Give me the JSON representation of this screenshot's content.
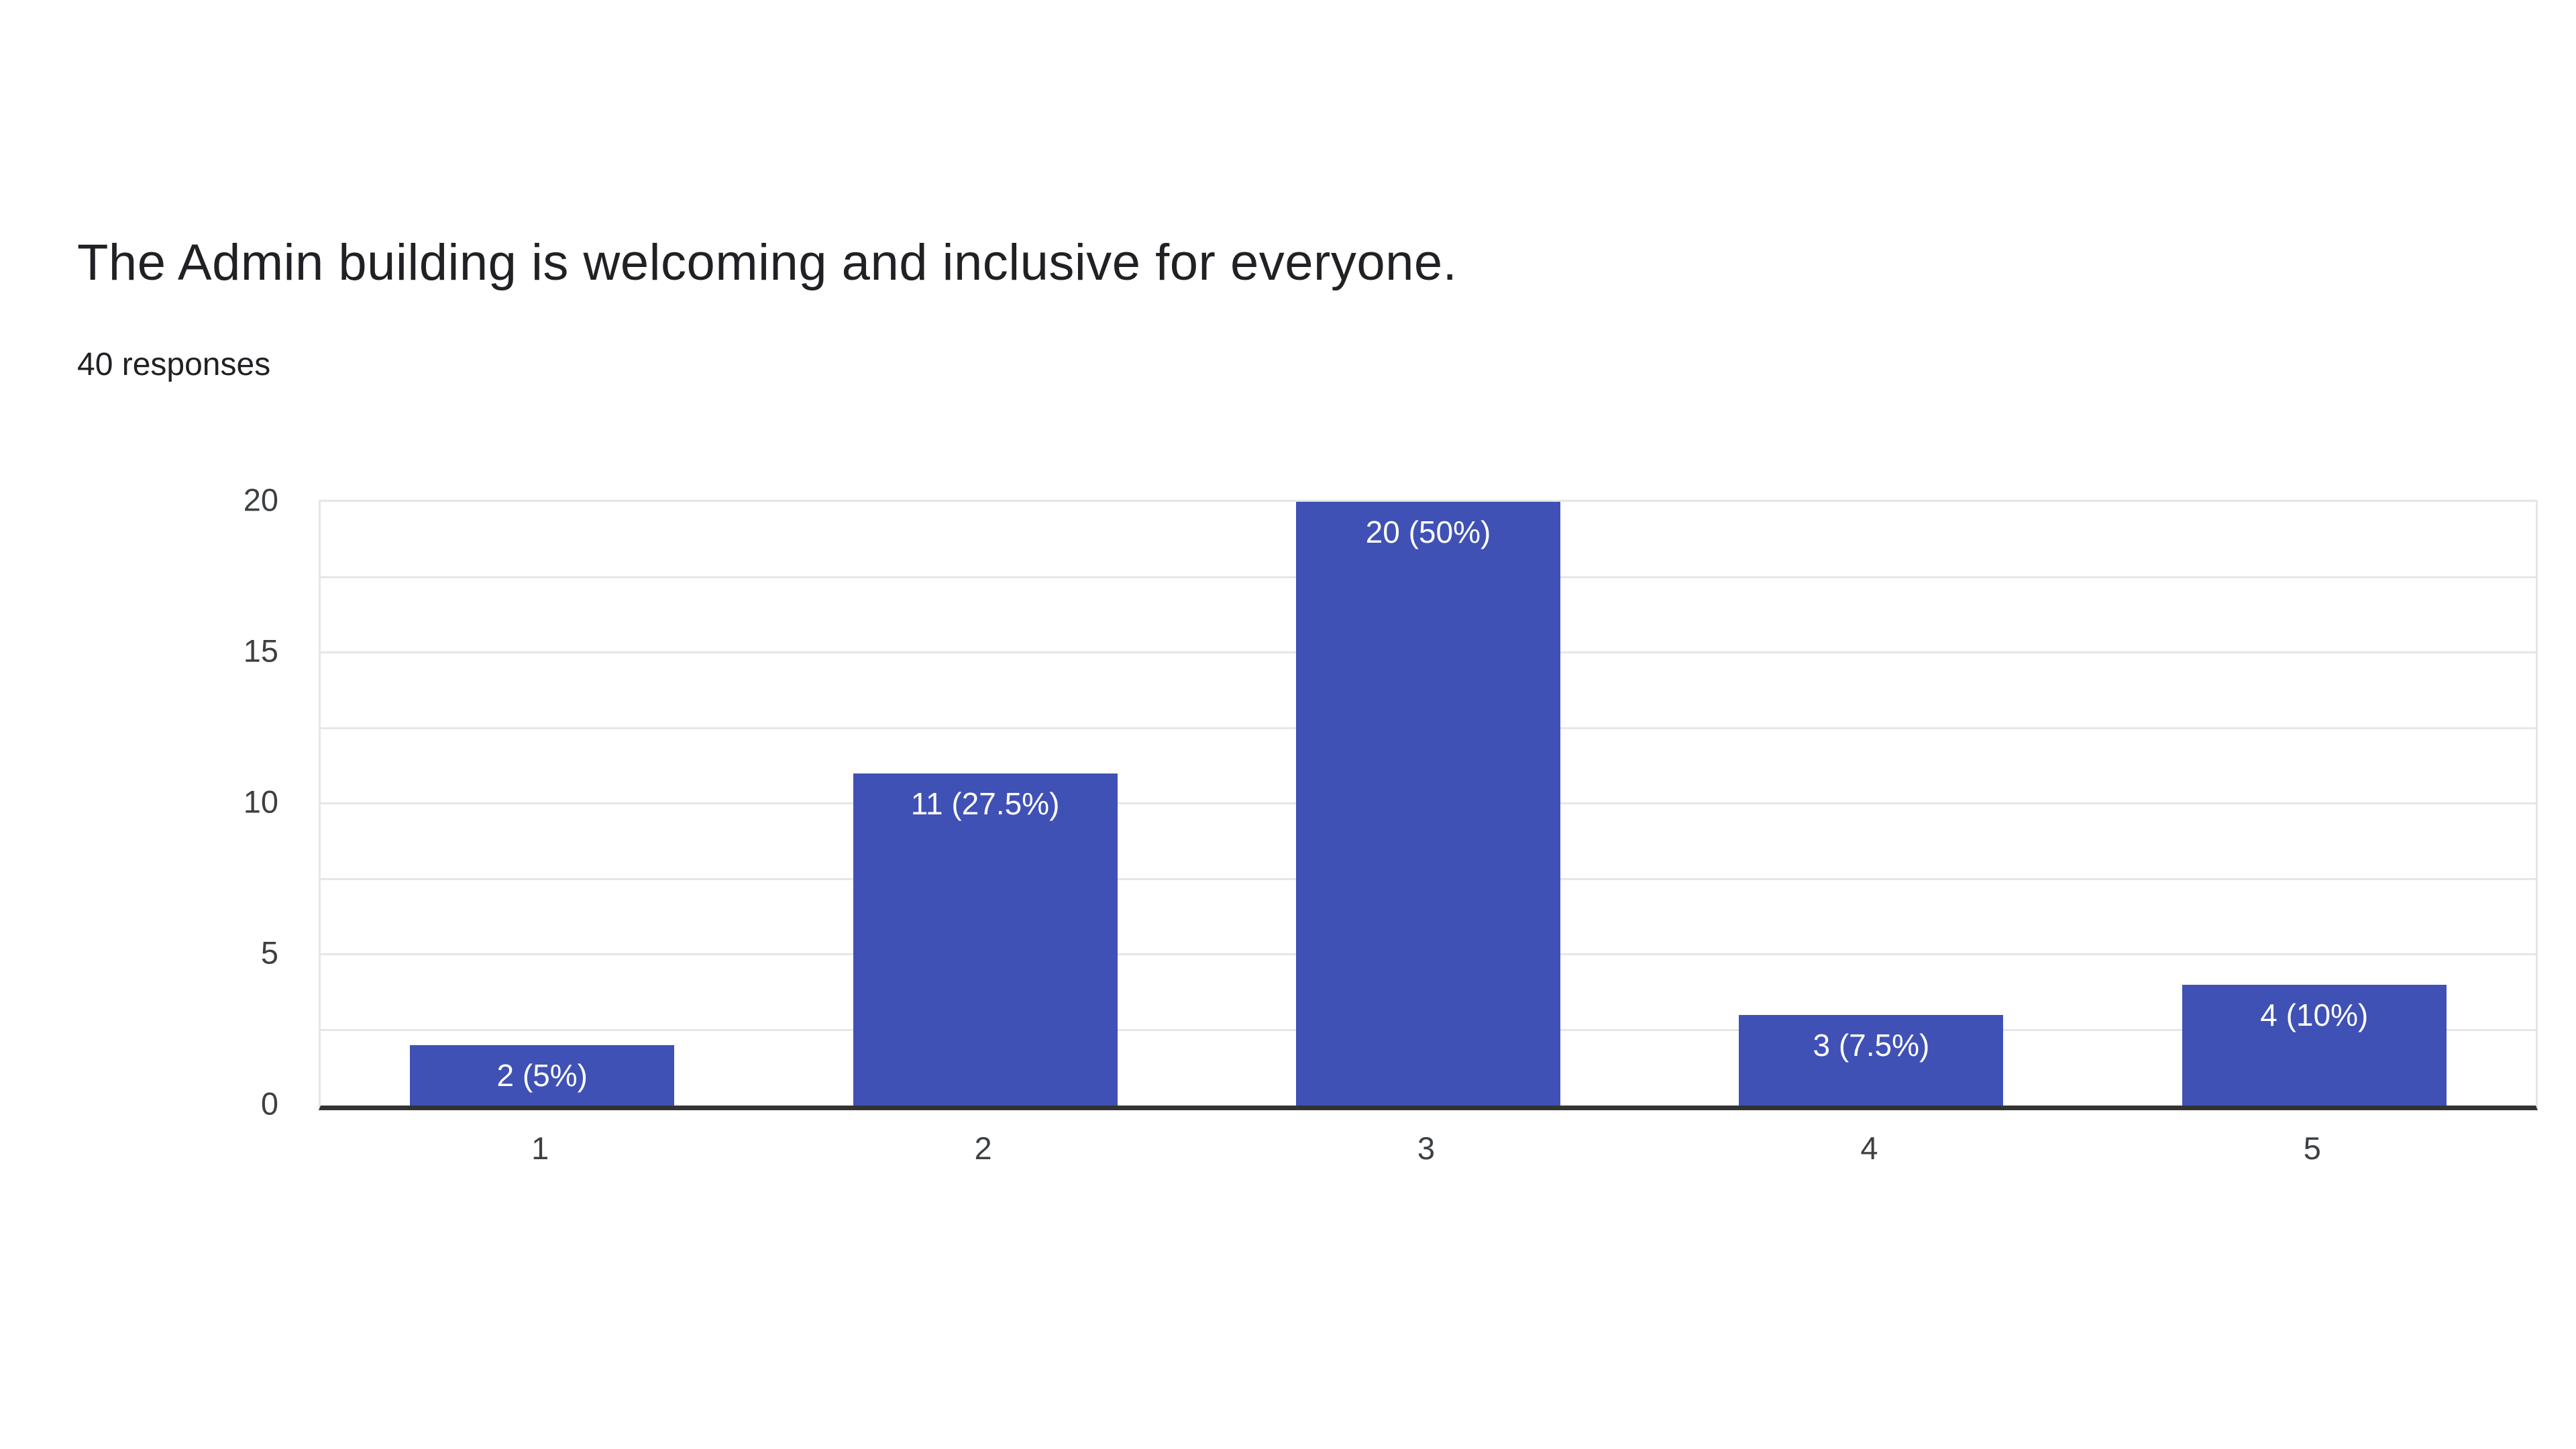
{
  "page": {
    "title": "The Admin building is welcoming and inclusive for everyone.",
    "responses_label": "40 responses"
  },
  "colors": {
    "title_text": "#202124",
    "subtitle_text": "#202124",
    "tick_label": "#3c4043",
    "axis_line": "#333333",
    "gridline": "#e6e6e6",
    "bar_fill": "#3f51b5",
    "bar_label_text": "#ffffff",
    "background": "#ffffff"
  },
  "chart_data": {
    "type": "bar",
    "title": "The Admin building is welcoming and inclusive for everyone.",
    "subtitle": "40 responses",
    "categories": [
      "1",
      "2",
      "3",
      "4",
      "5"
    ],
    "values": [
      2,
      11,
      20,
      3,
      4
    ],
    "percentages": [
      5,
      27.5,
      50,
      7.5,
      10
    ],
    "bar_labels": [
      "2 (5%)",
      "11 (27.5%)",
      "20 (50%)",
      "3 (7.5%)",
      "4 (10%)"
    ],
    "total_responses": 40,
    "xlabel": "",
    "ylabel": "",
    "ylim": [
      0,
      20
    ],
    "yticks": [
      0,
      5,
      10,
      15,
      20
    ],
    "minor_gridline_step": 2.5,
    "grid": true,
    "legend": "none",
    "bar_color": "#3f51b5",
    "bar_label_color": "#ffffff"
  }
}
